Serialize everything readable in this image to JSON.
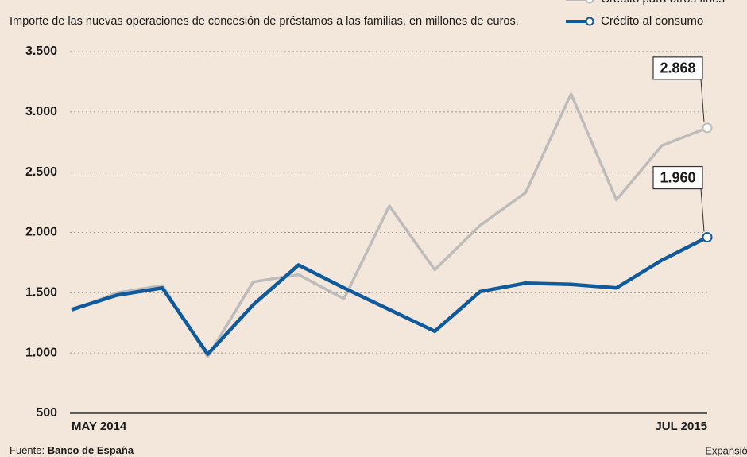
{
  "chart_data": {
    "type": "line",
    "subtitle": "Importe de las nuevas operaciones de concesión de préstamos a las familias, en millones de euros.",
    "categories": [
      "MAY 2014",
      null,
      null,
      null,
      null,
      null,
      null,
      null,
      null,
      null,
      null,
      null,
      null,
      null,
      "JUL 2015"
    ],
    "series": [
      {
        "name": "Crédito para otros fines",
        "color": "#bdbcbb",
        "values": [
          1350,
          1500,
          1560,
          970,
          1590,
          1650,
          1450,
          2220,
          1690,
          2060,
          2330,
          3150,
          2270,
          2720,
          2868
        ],
        "value_labels": [
          null,
          null,
          null,
          null,
          null,
          null,
          null,
          null,
          null,
          null,
          null,
          null,
          null,
          null,
          "2.868"
        ]
      },
      {
        "name": "Crédito al consumo",
        "color": "#0f5a9c",
        "values": [
          1360,
          1480,
          1540,
          990,
          1400,
          1730,
          1540,
          1360,
          1180,
          1510,
          1580,
          1570,
          1540,
          1770,
          1960
        ],
        "value_labels": [
          null,
          null,
          null,
          null,
          null,
          null,
          null,
          null,
          null,
          null,
          null,
          null,
          null,
          null,
          "1.960"
        ]
      }
    ],
    "ylim": [
      500,
      3500
    ],
    "yticks": [
      500,
      {
        "value": 1000,
        "label": "1.000"
      },
      {
        "value": 1500,
        "label": "1.500"
      },
      {
        "value": 2000,
        "label": "2.000"
      },
      {
        "value": 2500,
        "label": "2.500"
      },
      {
        "value": 3000,
        "label": "3.000"
      },
      {
        "value": 3500,
        "label": "3.500"
      }
    ],
    "grid": true,
    "legend": "top-right",
    "source": {
      "label": "Fuente:",
      "name": "Banco de España"
    },
    "brand": "Expansión"
  }
}
